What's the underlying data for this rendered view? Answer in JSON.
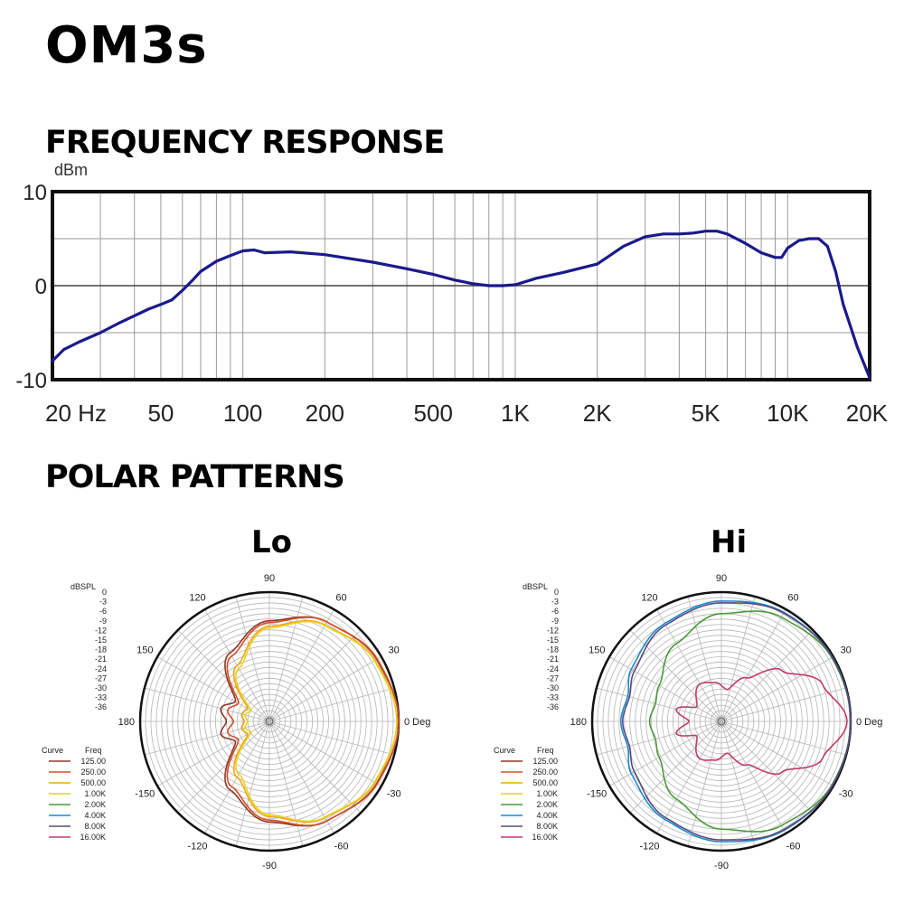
{
  "page": {
    "title": "OM3s",
    "freq_section": "FREQUENCY RESPONSE",
    "polar_section": "POLAR PATTERNS"
  },
  "chart_data": [
    {
      "type": "line",
      "ylabel": "dBm",
      "xscale": "log",
      "xlim": [
        20,
        20000
      ],
      "ylim": [
        -10,
        10
      ],
      "xticks": [
        20,
        50,
        100,
        200,
        500,
        1000,
        2000,
        5000,
        10000,
        20000
      ],
      "xtick_labels": [
        "20 Hz",
        "50",
        "100",
        "200",
        "500",
        "1K",
        "2K",
        "5K",
        "10K",
        "20K"
      ],
      "yticks": [
        10,
        0,
        -10
      ],
      "ytick_labels": [
        "10",
        "0",
        "-10"
      ],
      "grid": true,
      "series": [
        {
          "color": "#1a1a8c",
          "x": [
            20,
            22,
            25,
            30,
            35,
            40,
            45,
            50,
            55,
            60,
            65,
            70,
            80,
            90,
            100,
            110,
            120,
            150,
            200,
            300,
            400,
            500,
            600,
            700,
            800,
            900,
            1000,
            1200,
            1500,
            2000,
            2500,
            3000,
            3500,
            4000,
            4500,
            5000,
            5500,
            6000,
            7000,
            8000,
            9000,
            9500,
            10000,
            11000,
            12000,
            13000,
            14000,
            15000,
            16000,
            18000,
            20000
          ],
          "y": [
            -8,
            -6.8,
            -6,
            -5,
            -4,
            -3.2,
            -2.5,
            -2,
            -1.5,
            -0.5,
            0.5,
            1.5,
            2.6,
            3.2,
            3.7,
            3.8,
            3.5,
            3.6,
            3.3,
            2.5,
            1.8,
            1.2,
            0.6,
            0.2,
            0,
            0,
            0.1,
            0.8,
            1.4,
            2.3,
            4.2,
            5.2,
            5.5,
            5.5,
            5.6,
            5.8,
            5.8,
            5.5,
            4.5,
            3.5,
            3,
            3,
            4,
            4.8,
            5,
            5,
            4.2,
            1.5,
            -2,
            -6.5,
            -9.8
          ]
        }
      ]
    },
    {
      "type": "polar",
      "title": "Lo",
      "angle_labels": [
        "0 Deg",
        "30",
        "60",
        "90",
        "120",
        "150",
        "180",
        "-150",
        "-120",
        "-90",
        "-60",
        "-30"
      ],
      "radial_label": "dBSPL",
      "radial_ticks": [
        "0",
        "-3",
        "-6",
        "-9",
        "-12",
        "-15",
        "-18",
        "-21",
        "-24",
        "-27",
        "-30",
        "-33",
        "-36"
      ],
      "legend": {
        "header": [
          "Curve",
          "Freq"
        ],
        "entries": [
          {
            "freq": "125.00",
            "color": "#8b3a2a"
          },
          {
            "freq": "250.00",
            "color": "#d2502a"
          },
          {
            "freq": "500.00",
            "color": "#f2a51a"
          },
          {
            "freq": "1.00K",
            "color": "#e8d41a"
          },
          {
            "freq": "2.00K",
            "color": "#4a9a3a"
          },
          {
            "freq": "4.00K",
            "color": "#1a8ad4"
          },
          {
            "freq": "8.00K",
            "color": "#5a4a7a"
          },
          {
            "freq": "16.00K",
            "color": "#c23a6a"
          }
        ]
      },
      "series": [
        {
          "freq": "125.00",
          "angles": [
            0,
            30,
            60,
            90,
            120,
            150,
            165,
            180
          ],
          "levels": [
            0,
            -1.5,
            -4,
            -8,
            -14,
            -25,
            -22,
            -24
          ]
        },
        {
          "freq": "250.00",
          "angles": [
            0,
            30,
            60,
            90,
            120,
            150,
            165,
            180
          ],
          "levels": [
            0,
            -1.3,
            -4,
            -8.5,
            -15,
            -26,
            -24,
            -26
          ]
        },
        {
          "freq": "500.00",
          "angles": [
            0,
            30,
            60,
            90,
            120,
            150,
            165,
            180
          ],
          "levels": [
            -0.5,
            -2,
            -5,
            -9.5,
            -18,
            -29,
            -28,
            -29
          ]
        },
        {
          "freq": "1.00K",
          "angles": [
            0,
            30,
            60,
            90,
            120,
            150,
            165,
            180
          ],
          "levels": [
            -0.5,
            -2.2,
            -5.2,
            -10,
            -19,
            -30,
            -29,
            -30
          ]
        }
      ]
    },
    {
      "type": "polar",
      "title": "Hi",
      "angle_labels": [
        "0 Deg",
        "30",
        "60",
        "90",
        "120",
        "150",
        "180",
        "-150",
        "-120",
        "-90",
        "-60",
        "-30"
      ],
      "radial_label": "dBSPL",
      "radial_ticks": [
        "0",
        "-3",
        "-6",
        "-9",
        "-12",
        "-15",
        "-18",
        "-21",
        "-24",
        "-27",
        "-30",
        "-33",
        "-36"
      ],
      "legend": {
        "header": [
          "Curve",
          "Freq"
        ],
        "entries": [
          {
            "freq": "125.00",
            "color": "#8b3a2a"
          },
          {
            "freq": "250.00",
            "color": "#d2502a"
          },
          {
            "freq": "500.00",
            "color": "#f2a51a"
          },
          {
            "freq": "1.00K",
            "color": "#e8d41a"
          },
          {
            "freq": "2.00K",
            "color": "#4a9a3a"
          },
          {
            "freq": "4.00K",
            "color": "#1a8ad4"
          },
          {
            "freq": "8.00K",
            "color": "#5a4a7a"
          },
          {
            "freq": "16.00K",
            "color": "#c23a6a"
          }
        ]
      },
      "series": [
        {
          "freq": "2.00K",
          "angles": [
            0,
            30,
            60,
            90,
            120,
            150,
            165,
            180
          ],
          "levels": [
            0,
            -0.5,
            -2.5,
            -6,
            -11,
            -16,
            -17,
            -16
          ]
        },
        {
          "freq": "4.00K",
          "angles": [
            0,
            30,
            60,
            90,
            120,
            150,
            165,
            180
          ],
          "levels": [
            0,
            -0.3,
            -1,
            -2.5,
            -4.5,
            -7,
            -9,
            -8
          ]
        },
        {
          "freq": "8.00K",
          "angles": [
            0,
            30,
            60,
            90,
            120,
            150,
            165,
            180
          ],
          "levels": [
            0,
            -0.3,
            -1.2,
            -3,
            -5,
            -8,
            -9.5,
            -8.5
          ]
        },
        {
          "freq": "16.00K",
          "angles": [
            0,
            20,
            40,
            60,
            80,
            100,
            120,
            150,
            165,
            180
          ],
          "levels": [
            -1,
            -6,
            -14,
            -22,
            -27,
            -25,
            -24,
            -28,
            -23,
            -27
          ]
        }
      ]
    }
  ]
}
